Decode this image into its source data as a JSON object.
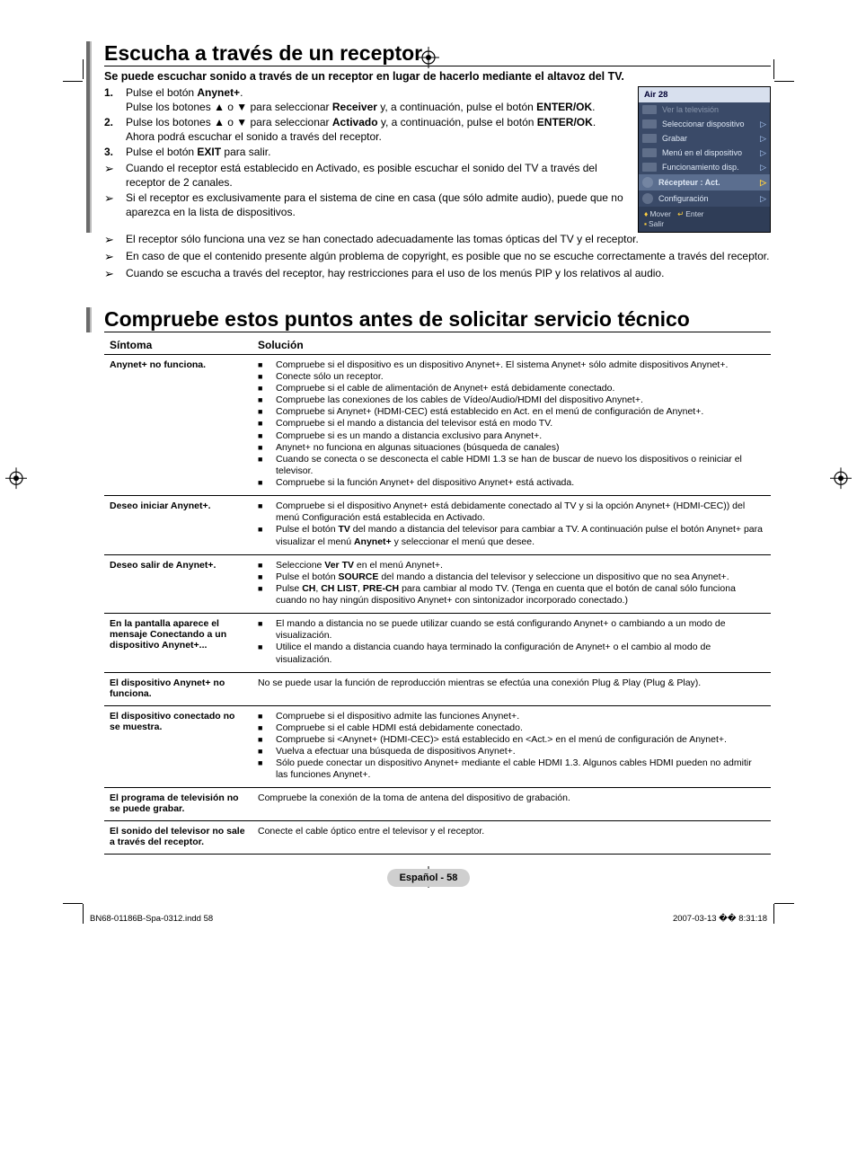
{
  "page": {
    "language_label": "Español - 58",
    "source_file": "BN68-01186B-Spa-0312.indd   58",
    "print_stamp": "2007-03-13   �� 8:31:18"
  },
  "section1": {
    "title": "Escucha a través de un receptor",
    "subheading": "Se puede escuchar sonido a través de un receptor en lugar de hacerlo mediante el altavoz del TV.",
    "steps": [
      {
        "num": "1.",
        "html": "Pulse el botón <b>Anynet+</b>.<br>Pulse los botones ▲ o ▼ para seleccionar <b>Receiver</b> y, a continuación, pulse el botón <b>ENTER/OK</b>."
      },
      {
        "num": "2.",
        "html": "Pulse los botones ▲ o ▼ para seleccionar <b>Activado</b> y, a continuación, pulse el botón <b>ENTER/OK</b>.<br>Ahora podrá escuchar el sonido a través del receptor."
      },
      {
        "num": "3.",
        "html": "Pulse el botón <b>EXIT</b> para salir."
      }
    ],
    "notes_narrow": [
      "Cuando el receptor está establecido en Activado, es posible escuchar el sonido del TV a través del receptor de 2 canales.",
      "Si el receptor es exclusivamente para el sistema de cine en casa (que sólo admite audio), puede que no aparezca en la lista de dispositivos."
    ],
    "notes_wide": [
      "El receptor sólo funciona una vez se han conectado adecuadamente las tomas ópticas del TV y el receptor.",
      "En caso de que el contenido presente algún problema de copyright, es posible que no se escuche correctamente a través del receptor.",
      "Cuando se escucha a través del receptor, hay restricciones para el uso de los menús PIP y los relativos al audio."
    ],
    "menu": {
      "title": "Air 28",
      "items": [
        {
          "label": "Ver la televisión",
          "dim": true,
          "arrow": ""
        },
        {
          "label": "Seleccionar dispositivo",
          "dim": false,
          "arrow": "▷"
        },
        {
          "label": "Grabar",
          "dim": false,
          "arrow": "▷"
        },
        {
          "label": "Menú en el dispositivo",
          "dim": false,
          "arrow": "▷"
        },
        {
          "label": "Funcionamiento disp.",
          "dim": false,
          "arrow": "▷"
        },
        {
          "label": "Récepteur   : Act.",
          "dim": false,
          "arrow": "▷",
          "hl": true,
          "round": true
        },
        {
          "label": "Configuración",
          "dim": false,
          "arrow": "▷",
          "round": true
        }
      ],
      "footer_move": "Mover",
      "footer_enter": "Enter",
      "footer_exit": "Salir"
    }
  },
  "section2": {
    "title": "Compruebe estos puntos antes de solicitar servicio técnico",
    "col_symptom": "Síntoma",
    "col_solution": "Solución",
    "rows": [
      {
        "symptom": "Anynet+ no funciona.",
        "solutions": [
          "Compruebe si el dispositivo es un dispositivo Anynet+. El sistema Anynet+ sólo admite dispositivos Anynet+.",
          "Conecte sólo un receptor.",
          "Compruebe si el cable de alimentación de Anynet+ está debidamente conectado.",
          "Compruebe las conexiones de los cables de Vídeo/Audio/HDMI del dispositivo Anynet+.",
          "Compruebe si Anynet+ (HDMI-CEC) está establecido en Act. en el menú de configuración de Anynet+.",
          "Compruebe si el mando a distancia del televisor está en modo TV.",
          "Compruebe si es un mando a distancia exclusivo para Anynet+.",
          "Anynet+ no funciona en algunas situaciones (búsqueda de canales)",
          "Cuando se conecta o se desconecta el cable HDMI 1.3 se han de buscar de nuevo los dispositivos o reiniciar el televisor.",
          "Compruebe si la función Anynet+ del dispositivo Anynet+ está activada."
        ]
      },
      {
        "symptom": "Deseo iniciar Anynet+.",
        "solutions_html": [
          "Compruebe si el dispositivo Anynet+ está debidamente conectado al TV y si la opción Anynet+ (HDMI-CEC)) del menú Configuración está establecida en Activado.",
          "Pulse el botón <b>TV</b> del mando a distancia del televisor para cambiar a TV. A continuación pulse el botón Anynet+ para visualizar el menú <b>Anynet+</b> y seleccionar el menú que desee."
        ]
      },
      {
        "symptom": "Deseo salir de Anynet+.",
        "solutions_html": [
          "Seleccione <b>Ver TV</b> en el menú Anynet+.",
          "Pulse el botón <b>SOURCE</b> del mando a distancia del televisor y seleccione un dispositivo que no sea Anynet+.",
          "Pulse <b>CH</b>, <b>CH LIST</b>, <b>PRE-CH</b> para cambiar al modo TV. (Tenga en cuenta que el botón de canal sólo funciona cuando no hay ningún dispositivo Anynet+ con sintonizador incorporado conectado.)"
        ]
      },
      {
        "symptom": "En la pantalla aparece el mensaje Conectando a un dispositivo Anynet+...",
        "solutions": [
          "El mando a distancia no se puede utilizar cuando se está configurando Anynet+ o cambiando a un modo de visualización.",
          "Utilice el mando a distancia cuando haya terminado la configuración de Anynet+ o el cambio al modo de visualización."
        ]
      },
      {
        "symptom": "El dispositivo Anynet+ no funciona.",
        "plain": "No se puede usar la función de reproducción mientras se efectúa una conexión Plug & Play (Plug & Play)."
      },
      {
        "symptom": "El dispositivo conectado no se muestra.",
        "solutions_html": [
          "Compruebe si el dispositivo admite las funciones Anynet+.",
          "Compruebe si el cable HDMI está debidamente conectado.",
          "Compruebe si &lt;Anynet+ (HDMI-CEC)&gt; está establecido en &lt;Act.&gt; en el menú de configuración de Anynet+.",
          "Vuelva a efectuar una búsqueda de dispositivos Anynet+.",
          "Sólo puede conectar un dispositivo Anynet+ mediante el cable HDMI 1.3. Algunos cables HDMI pueden no admitir las funciones Anynet+."
        ]
      },
      {
        "symptom": "El programa de televisión no se puede grabar.",
        "plain": "Compruebe la conexión de la toma de antena del dispositivo de grabación."
      },
      {
        "symptom": "El sonido del televisor no sale a través del receptor.",
        "plain": "Conecte el cable óptico entre el televisor y el receptor."
      }
    ]
  }
}
